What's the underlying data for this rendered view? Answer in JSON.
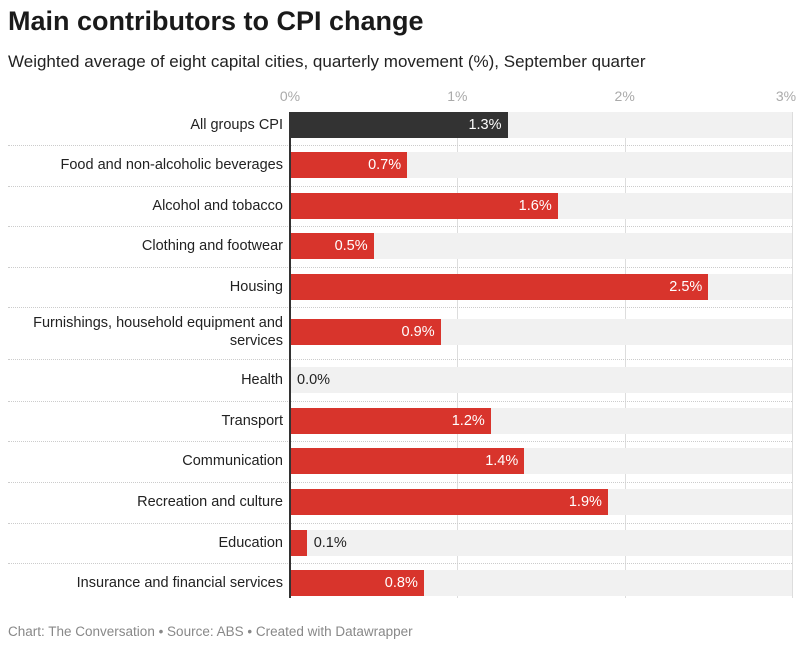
{
  "chart_data": {
    "type": "bar",
    "orientation": "horizontal",
    "title": "Main contributors to CPI change",
    "subtitle": "Weighted average of eight capital cities, quarterly movement (%), September quarter",
    "categories": [
      "All groups CPI",
      "Food and non-alcoholic beverages",
      "Alcohol and tobacco",
      "Clothing and footwear",
      "Housing",
      "Furnishings, household equipment and services",
      "Health",
      "Transport",
      "Communication",
      "Recreation and culture",
      "Education",
      "Insurance and financial services"
    ],
    "values": [
      1.3,
      0.7,
      1.6,
      0.5,
      2.5,
      0.9,
      0.0,
      1.2,
      1.4,
      1.9,
      0.1,
      0.8
    ],
    "value_labels": [
      "1.3%",
      "0.7%",
      "1.6%",
      "0.5%",
      "2.5%",
      "0.9%",
      "0.0%",
      "1.2%",
      "1.4%",
      "1.9%",
      "0.1%",
      "0.8%"
    ],
    "xlim": [
      0,
      3
    ],
    "x_ticks": [
      "0%",
      "1%",
      "2%",
      "3%"
    ],
    "tick_values": [
      0,
      1,
      2,
      3
    ],
    "grid": true,
    "colors": {
      "highlight": "#333333",
      "bar": "#d8342c",
      "background_stripe": "#f1f1f1"
    },
    "footer": "Chart: The Conversation • Source: ABS • Created with Datawrapper"
  }
}
